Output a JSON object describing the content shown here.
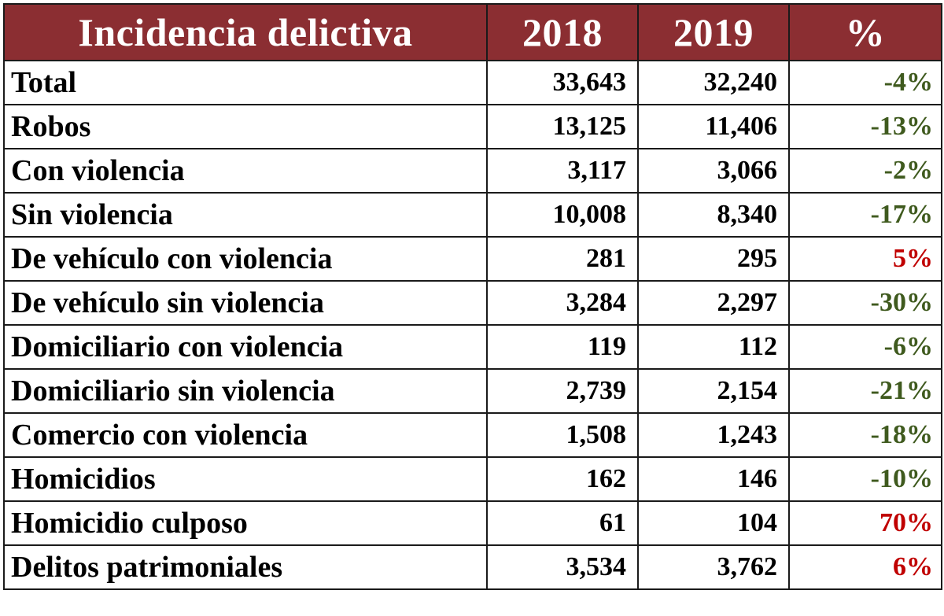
{
  "table": {
    "headers": {
      "label": "Incidencia delictiva",
      "y2018": "2018",
      "y2019": "2019",
      "pct": "%"
    },
    "rows": [
      {
        "label": "Total",
        "y2018": "33,643",
        "y2019": "32,240",
        "pct": "-4%",
        "trend": "neg"
      },
      {
        "label": "Robos",
        "y2018": "13,125",
        "y2019": "11,406",
        "pct": "-13%",
        "trend": "neg"
      },
      {
        "label": "Con violencia",
        "y2018": "3,117",
        "y2019": "3,066",
        "pct": "-2%",
        "trend": "neg"
      },
      {
        "label": "Sin violencia",
        "y2018": "10,008",
        "y2019": "8,340",
        "pct": "-17%",
        "trend": "neg"
      },
      {
        "label": "De vehículo con violencia",
        "y2018": "281",
        "y2019": "295",
        "pct": "5%",
        "trend": "pos"
      },
      {
        "label": "De vehículo sin violencia",
        "y2018": "3,284",
        "y2019": "2,297",
        "pct": "-30%",
        "trend": "neg"
      },
      {
        "label": "Domiciliario con violencia",
        "y2018": "119",
        "y2019": "112",
        "pct": "-6%",
        "trend": "neg"
      },
      {
        "label": "Domiciliario sin violencia",
        "y2018": "2,739",
        "y2019": "2,154",
        "pct": "-21%",
        "trend": "neg"
      },
      {
        "label": "Comercio con violencia",
        "y2018": "1,508",
        "y2019": "1,243",
        "pct": "-18%",
        "trend": "neg"
      },
      {
        "label": "Homicidios",
        "y2018": "162",
        "y2019": "146",
        "pct": "-10%",
        "trend": "neg"
      },
      {
        "label": "Homicidio culposo",
        "y2018": "61",
        "y2019": "104",
        "pct": "70%",
        "trend": "pos"
      },
      {
        "label": "Delitos patrimoniales",
        "y2018": "3,534",
        "y2019": "3,762",
        "pct": "6%",
        "trend": "pos"
      }
    ]
  },
  "colors": {
    "header_bg": "#8b2e32",
    "header_text": "#ffffff",
    "decrease": "#3f5a1e",
    "increase": "#c00000"
  }
}
